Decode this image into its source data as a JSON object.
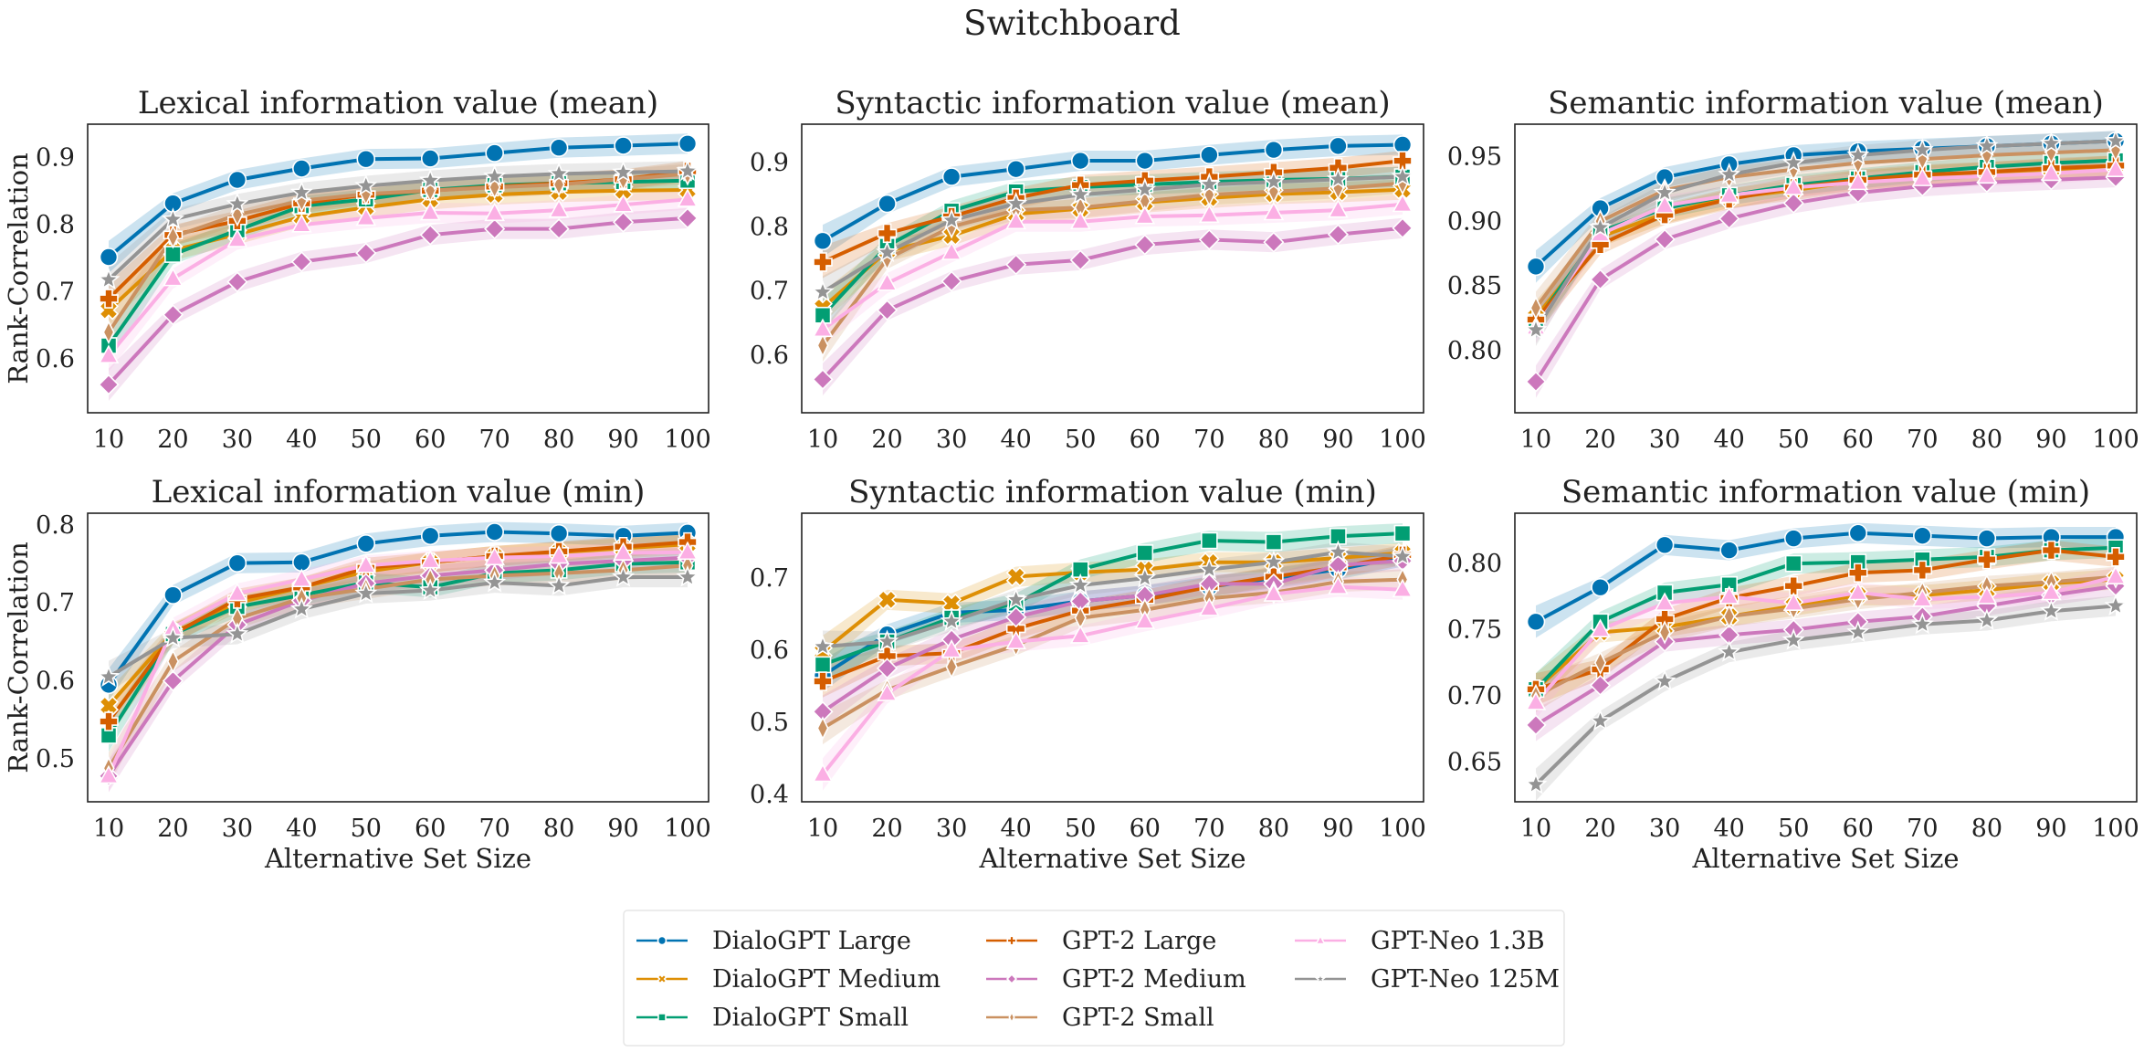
{
  "figure_title": "Switchboard",
  "chart_data": [
    {
      "type": "line",
      "title": "Lexical information value (mean)",
      "xlabel": "",
      "ylabel": "Rank-Correlation",
      "x": [
        10,
        20,
        30,
        40,
        50,
        60,
        70,
        80,
        90,
        100
      ],
      "xticks": [
        "10",
        "20",
        "30",
        "40",
        "50",
        "60",
        "70",
        "80",
        "90",
        "100"
      ],
      "ylim": [
        0.52,
        0.95
      ],
      "yticks": [
        0.6,
        0.7,
        0.8,
        0.9
      ],
      "ytick_labels": [
        "0.6",
        "0.7",
        "0.8",
        "0.9"
      ],
      "series": [
        {
          "name": "DialoGPT Large",
          "values": [
            0.752,
            0.832,
            0.867,
            0.884,
            0.898,
            0.899,
            0.907,
            0.915,
            0.918,
            0.921
          ]
        },
        {
          "name": "DialoGPT Medium",
          "values": [
            0.673,
            0.762,
            0.786,
            0.812,
            0.826,
            0.838,
            0.845,
            0.849,
            0.851,
            0.852
          ]
        },
        {
          "name": "DialoGPT Small",
          "values": [
            0.62,
            0.756,
            0.792,
            0.828,
            0.838,
            0.852,
            0.859,
            0.862,
            0.864,
            0.866
          ]
        },
        {
          "name": "GPT-2 Large",
          "values": [
            0.69,
            0.785,
            0.806,
            0.832,
            0.845,
            0.851,
            0.857,
            0.862,
            0.868,
            0.88
          ]
        },
        {
          "name": "GPT-2 Medium",
          "values": [
            0.562,
            0.666,
            0.715,
            0.745,
            0.758,
            0.785,
            0.794,
            0.794,
            0.804,
            0.81
          ]
        },
        {
          "name": "GPT-2 Small",
          "values": [
            0.64,
            0.782,
            0.815,
            0.836,
            0.846,
            0.851,
            0.856,
            0.86,
            0.868,
            0.876
          ]
        },
        {
          "name": "GPT-Neo 1.3B",
          "values": [
            0.605,
            0.72,
            0.778,
            0.8,
            0.81,
            0.818,
            0.817,
            0.822,
            0.83,
            0.838
          ]
        },
        {
          "name": "GPT-Neo 125M",
          "values": [
            0.718,
            0.808,
            0.831,
            0.848,
            0.858,
            0.866,
            0.872,
            0.876,
            0.878,
            0.88
          ]
        }
      ]
    },
    {
      "type": "line",
      "title": "Syntactic information value (mean)",
      "xlabel": "",
      "ylabel": "",
      "x": [
        10,
        20,
        30,
        40,
        50,
        60,
        70,
        80,
        90,
        100
      ],
      "xticks": [
        "10",
        "20",
        "30",
        "40",
        "50",
        "60",
        "70",
        "80",
        "90",
        "100"
      ],
      "ylim": [
        0.51,
        0.96
      ],
      "yticks": [
        0.6,
        0.7,
        0.8,
        0.9
      ],
      "ytick_labels": [
        "0.6",
        "0.7",
        "0.8",
        "0.9"
      ],
      "series": [
        {
          "name": "DialoGPT Large",
          "values": [
            0.778,
            0.836,
            0.878,
            0.89,
            0.903,
            0.903,
            0.912,
            0.92,
            0.926,
            0.928
          ]
        },
        {
          "name": "DialoGPT Medium",
          "values": [
            0.674,
            0.762,
            0.786,
            0.82,
            0.828,
            0.838,
            0.845,
            0.851,
            0.854,
            0.858
          ]
        },
        {
          "name": "DialoGPT Small",
          "values": [
            0.662,
            0.77,
            0.825,
            0.855,
            0.862,
            0.866,
            0.87,
            0.873,
            0.875,
            0.878
          ]
        },
        {
          "name": "GPT-2 Large",
          "values": [
            0.745,
            0.79,
            0.816,
            0.845,
            0.865,
            0.872,
            0.878,
            0.885,
            0.892,
            0.903
          ]
        },
        {
          "name": "GPT-2 Medium",
          "values": [
            0.562,
            0.67,
            0.715,
            0.741,
            0.748,
            0.772,
            0.78,
            0.776,
            0.788,
            0.798
          ]
        },
        {
          "name": "GPT-2 Small",
          "values": [
            0.615,
            0.75,
            0.8,
            0.826,
            0.83,
            0.84,
            0.85,
            0.855,
            0.86,
            0.868
          ]
        },
        {
          "name": "GPT-Neo 1.3B",
          "values": [
            0.64,
            0.712,
            0.76,
            0.808,
            0.808,
            0.816,
            0.818,
            0.822,
            0.826,
            0.835
          ]
        },
        {
          "name": "GPT-Neo 125M",
          "values": [
            0.698,
            0.76,
            0.81,
            0.836,
            0.85,
            0.858,
            0.866,
            0.87,
            0.874,
            0.878
          ]
        }
      ]
    },
    {
      "type": "line",
      "title": "Semantic information value (mean)",
      "xlabel": "",
      "ylabel": "",
      "x": [
        10,
        20,
        30,
        40,
        50,
        60,
        70,
        80,
        90,
        100
      ],
      "xticks": [
        "10",
        "20",
        "30",
        "40",
        "50",
        "60",
        "70",
        "80",
        "90",
        "100"
      ],
      "ylim": [
        0.752,
        0.975
      ],
      "yticks": [
        0.8,
        0.85,
        0.9,
        0.95
      ],
      "ytick_labels": [
        "0.80",
        "0.85",
        "0.90",
        "0.95"
      ],
      "series": [
        {
          "name": "DialoGPT Large",
          "values": [
            0.865,
            0.91,
            0.934,
            0.944,
            0.951,
            0.954,
            0.956,
            0.958,
            0.96,
            0.962
          ]
        },
        {
          "name": "DialoGPT Medium",
          "values": [
            0.826,
            0.888,
            0.906,
            0.918,
            0.924,
            0.931,
            0.935,
            0.938,
            0.94,
            0.943
          ]
        },
        {
          "name": "DialoGPT Small",
          "values": [
            0.822,
            0.892,
            0.91,
            0.92,
            0.928,
            0.933,
            0.938,
            0.942,
            0.945,
            0.947
          ]
        },
        {
          "name": "GPT-2 Large",
          "values": [
            0.824,
            0.882,
            0.905,
            0.917,
            0.926,
            0.932,
            0.936,
            0.938,
            0.941,
            0.943
          ]
        },
        {
          "name": "GPT-2 Medium",
          "values": [
            0.776,
            0.855,
            0.886,
            0.902,
            0.914,
            0.922,
            0.927,
            0.93,
            0.932,
            0.934
          ]
        },
        {
          "name": "GPT-2 Small",
          "values": [
            0.833,
            0.9,
            0.924,
            0.934,
            0.94,
            0.945,
            0.948,
            0.951,
            0.953,
            0.955
          ]
        },
        {
          "name": "GPT-Neo 1.3B",
          "values": [
            0.818,
            0.89,
            0.912,
            0.92,
            0.926,
            0.93,
            0.933,
            0.935,
            0.937,
            0.94
          ]
        },
        {
          "name": "GPT-Neo 125M",
          "values": [
            0.816,
            0.895,
            0.922,
            0.936,
            0.945,
            0.951,
            0.955,
            0.958,
            0.96,
            0.962
          ]
        }
      ]
    },
    {
      "type": "line",
      "title": "Lexical information value (min)",
      "xlabel": "Alternative Set Size",
      "ylabel": "Rank-Correlation",
      "x": [
        10,
        20,
        30,
        40,
        50,
        60,
        70,
        80,
        90,
        100
      ],
      "xticks": [
        "10",
        "20",
        "30",
        "40",
        "50",
        "60",
        "70",
        "80",
        "90",
        "100"
      ],
      "ylim": [
        0.445,
        0.815
      ],
      "yticks": [
        0.5,
        0.6,
        0.7,
        0.8
      ],
      "ytick_labels": [
        "0.5",
        "0.6",
        "0.7",
        "0.8"
      ],
      "series": [
        {
          "name": "DialoGPT Large",
          "values": [
            0.595,
            0.71,
            0.751,
            0.752,
            0.776,
            0.786,
            0.791,
            0.789,
            0.786,
            0.79
          ]
        },
        {
          "name": "DialoGPT Medium",
          "values": [
            0.568,
            0.662,
            0.7,
            0.72,
            0.74,
            0.752,
            0.76,
            0.765,
            0.77,
            0.775
          ]
        },
        {
          "name": "DialoGPT Small",
          "values": [
            0.53,
            0.66,
            0.695,
            0.71,
            0.726,
            0.72,
            0.738,
            0.742,
            0.75,
            0.752
          ]
        },
        {
          "name": "GPT-2 Large",
          "values": [
            0.548,
            0.66,
            0.705,
            0.72,
            0.745,
            0.752,
            0.76,
            0.766,
            0.772,
            0.778
          ]
        },
        {
          "name": "GPT-2 Medium",
          "values": [
            0.478,
            0.6,
            0.672,
            0.703,
            0.725,
            0.735,
            0.742,
            0.75,
            0.754,
            0.758
          ]
        },
        {
          "name": "GPT-2 Small",
          "values": [
            0.488,
            0.625,
            0.68,
            0.706,
            0.718,
            0.73,
            0.735,
            0.738,
            0.742,
            0.748
          ]
        },
        {
          "name": "GPT-Neo 1.3B",
          "values": [
            0.478,
            0.668,
            0.712,
            0.73,
            0.748,
            0.754,
            0.758,
            0.76,
            0.764,
            0.765
          ]
        },
        {
          "name": "GPT-Neo 125M",
          "values": [
            0.605,
            0.655,
            0.66,
            0.692,
            0.712,
            0.716,
            0.726,
            0.722,
            0.733,
            0.733
          ]
        }
      ]
    },
    {
      "type": "line",
      "title": "Syntactic information value (min)",
      "xlabel": "Alternative Set Size",
      "ylabel": "",
      "x": [
        10,
        20,
        30,
        40,
        50,
        60,
        70,
        80,
        90,
        100
      ],
      "xticks": [
        "10",
        "20",
        "30",
        "40",
        "50",
        "60",
        "70",
        "80",
        "90",
        "100"
      ],
      "ylim": [
        0.39,
        0.79
      ],
      "yticks": [
        0.4,
        0.5,
        0.6,
        0.7
      ],
      "ytick_labels": [
        "0.4",
        "0.5",
        "0.6",
        "0.7"
      ],
      "series": [
        {
          "name": "DialoGPT Large",
          "values": [
            0.565,
            0.622,
            0.652,
            0.656,
            0.668,
            0.676,
            0.688,
            0.7,
            0.712,
            0.73
          ]
        },
        {
          "name": "DialoGPT Medium",
          "values": [
            0.598,
            0.67,
            0.665,
            0.702,
            0.708,
            0.712,
            0.722,
            0.722,
            0.728,
            0.735
          ]
        },
        {
          "name": "DialoGPT Small",
          "values": [
            0.58,
            0.612,
            0.645,
            0.665,
            0.712,
            0.735,
            0.752,
            0.75,
            0.758,
            0.762
          ]
        },
        {
          "name": "GPT-2 Large",
          "values": [
            0.557,
            0.592,
            0.596,
            0.63,
            0.655,
            0.67,
            0.688,
            0.702,
            0.715,
            0.732
          ]
        },
        {
          "name": "GPT-2 Medium",
          "values": [
            0.515,
            0.575,
            0.615,
            0.646,
            0.668,
            0.676,
            0.692,
            0.692,
            0.718,
            0.724
          ]
        },
        {
          "name": "GPT-2 Small",
          "values": [
            0.492,
            0.545,
            0.577,
            0.607,
            0.645,
            0.656,
            0.672,
            0.68,
            0.695,
            0.698
          ]
        },
        {
          "name": "GPT-Neo 1.3B",
          "values": [
            0.428,
            0.54,
            0.6,
            0.612,
            0.62,
            0.64,
            0.658,
            0.678,
            0.688,
            0.684
          ]
        },
        {
          "name": "GPT-Neo 125M",
          "values": [
            0.605,
            0.612,
            0.64,
            0.67,
            0.69,
            0.7,
            0.712,
            0.722,
            0.736,
            0.73
          ]
        }
      ]
    },
    {
      "type": "line",
      "title": "Semantic information value (min)",
      "xlabel": "Alternative Set Size",
      "ylabel": "",
      "x": [
        10,
        20,
        30,
        40,
        50,
        60,
        70,
        80,
        90,
        100
      ],
      "xticks": [
        "10",
        "20",
        "30",
        "40",
        "50",
        "60",
        "70",
        "80",
        "90",
        "100"
      ],
      "ylim": [
        0.62,
        0.838
      ],
      "yticks": [
        0.65,
        0.7,
        0.75,
        0.8
      ],
      "ytick_labels": [
        "0.65",
        "0.70",
        "0.75",
        "0.80"
      ],
      "series": [
        {
          "name": "DialoGPT Large",
          "values": [
            0.756,
            0.782,
            0.814,
            0.81,
            0.819,
            0.823,
            0.821,
            0.819,
            0.82,
            0.82
          ]
        },
        {
          "name": "DialoGPT Medium",
          "values": [
            0.705,
            0.748,
            0.752,
            0.76,
            0.768,
            0.776,
            0.776,
            0.78,
            0.785,
            0.788
          ]
        },
        {
          "name": "DialoGPT Small",
          "values": [
            0.705,
            0.756,
            0.778,
            0.784,
            0.8,
            0.801,
            0.803,
            0.805,
            0.81,
            0.812
          ]
        },
        {
          "name": "GPT-2 Large",
          "values": [
            0.705,
            0.72,
            0.758,
            0.774,
            0.783,
            0.793,
            0.795,
            0.803,
            0.81,
            0.805
          ]
        },
        {
          "name": "GPT-2 Medium",
          "values": [
            0.678,
            0.708,
            0.741,
            0.746,
            0.75,
            0.756,
            0.76,
            0.768,
            0.776,
            0.783
          ]
        },
        {
          "name": "GPT-2 Small",
          "values": [
            0.7,
            0.725,
            0.748,
            0.76,
            0.766,
            0.773,
            0.778,
            0.783,
            0.786,
            0.79
          ]
        },
        {
          "name": "GPT-Neo 1.3B",
          "values": [
            0.695,
            0.75,
            0.77,
            0.775,
            0.77,
            0.778,
            0.773,
            0.775,
            0.778,
            0.79
          ]
        },
        {
          "name": "GPT-Neo 125M",
          "values": [
            0.633,
            0.681,
            0.711,
            0.733,
            0.742,
            0.748,
            0.754,
            0.757,
            0.764,
            0.768
          ]
        }
      ]
    }
  ],
  "legend": {
    "placement": "bottom-center",
    "entries": [
      {
        "name": "DialoGPT Large",
        "color": "#0173b2",
        "marker": "circle"
      },
      {
        "name": "DialoGPT Medium",
        "color": "#de8f05",
        "marker": "x"
      },
      {
        "name": "DialoGPT Small",
        "color": "#029e73",
        "marker": "square"
      },
      {
        "name": "GPT-2 Large",
        "color": "#d55e00",
        "marker": "plus"
      },
      {
        "name": "GPT-2 Medium",
        "color": "#cc78bc",
        "marker": "diamond"
      },
      {
        "name": "GPT-2 Small",
        "color": "#ca9161",
        "marker": "thin-diamond"
      },
      {
        "name": "GPT-Neo 1.3B",
        "color": "#fbafe4",
        "marker": "triangle"
      },
      {
        "name": "GPT-Neo 125M",
        "color": "#949494",
        "marker": "star"
      }
    ]
  },
  "colors": {
    "DialoGPT Large": "#0173b2",
    "DialoGPT Medium": "#de8f05",
    "DialoGPT Small": "#029e73",
    "GPT-2 Large": "#d55e00",
    "GPT-2 Medium": "#cc78bc",
    "GPT-2 Small": "#ca9161",
    "GPT-Neo 1.3B": "#fbafe4",
    "GPT-Neo 125M": "#949494"
  }
}
